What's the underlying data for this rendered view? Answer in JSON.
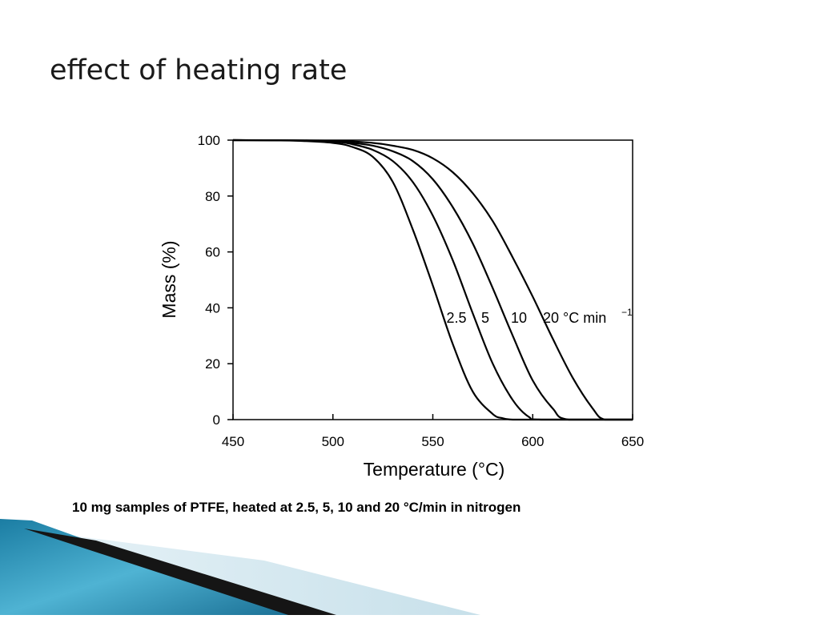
{
  "slide": {
    "title": "effect of heating rate",
    "caption": "10 mg samples of PTFE, heated at 2.5, 5, 10 and 20 °C/min in nitrogen"
  },
  "colors": {
    "background": "#ffffff",
    "curve": "#000000",
    "decor_dark": "#1a1a1a",
    "decor_blue": "#2a8fb3",
    "decor_light": "#cfe6ef"
  },
  "chart_data": {
    "type": "line",
    "xlabel": "Temperature (°C)",
    "ylabel": "Mass (%)",
    "xlim": [
      450,
      650
    ],
    "ylim": [
      0,
      100
    ],
    "x_ticks": [
      450,
      500,
      550,
      600,
      650
    ],
    "y_ticks": [
      0,
      20,
      40,
      60,
      80,
      100
    ],
    "grid": false,
    "series": [
      {
        "name": "2.5",
        "x": [
          450,
          480,
          500,
          510,
          520,
          530,
          540,
          550,
          560,
          570,
          580,
          585,
          590,
          600,
          650
        ],
        "y": [
          100,
          99.8,
          99,
          97.5,
          94,
          85,
          68,
          48,
          27,
          10,
          2,
          0.5,
          0,
          0,
          0
        ]
      },
      {
        "name": "5",
        "x": [
          450,
          480,
          500,
          510,
          520,
          530,
          540,
          550,
          560,
          570,
          580,
          590,
          598,
          605,
          650
        ],
        "y": [
          100,
          99.9,
          99.5,
          98.5,
          96.5,
          92.5,
          85,
          73,
          57,
          38,
          20,
          7,
          1,
          0,
          0
        ]
      },
      {
        "name": "10",
        "x": [
          450,
          490,
          510,
          520,
          530,
          540,
          550,
          560,
          570,
          580,
          590,
          600,
          610,
          618,
          650
        ],
        "y": [
          100,
          99.8,
          99,
          98,
          96,
          92.5,
          86,
          76,
          63,
          47,
          30,
          14,
          4,
          0,
          0
        ]
      },
      {
        "name": "20",
        "x": [
          450,
          500,
          520,
          530,
          540,
          550,
          560,
          570,
          580,
          590,
          600,
          610,
          620,
          630,
          636,
          650
        ],
        "y": [
          100,
          99.8,
          99,
          98,
          96.5,
          93.5,
          88.5,
          81,
          71,
          58,
          44,
          29,
          15,
          4,
          0,
          0
        ]
      }
    ],
    "annotation": {
      "labels": [
        "2.5",
        "5",
        "10",
        "20"
      ],
      "unit_text": "°C min",
      "unit_superscript": "−1"
    }
  }
}
